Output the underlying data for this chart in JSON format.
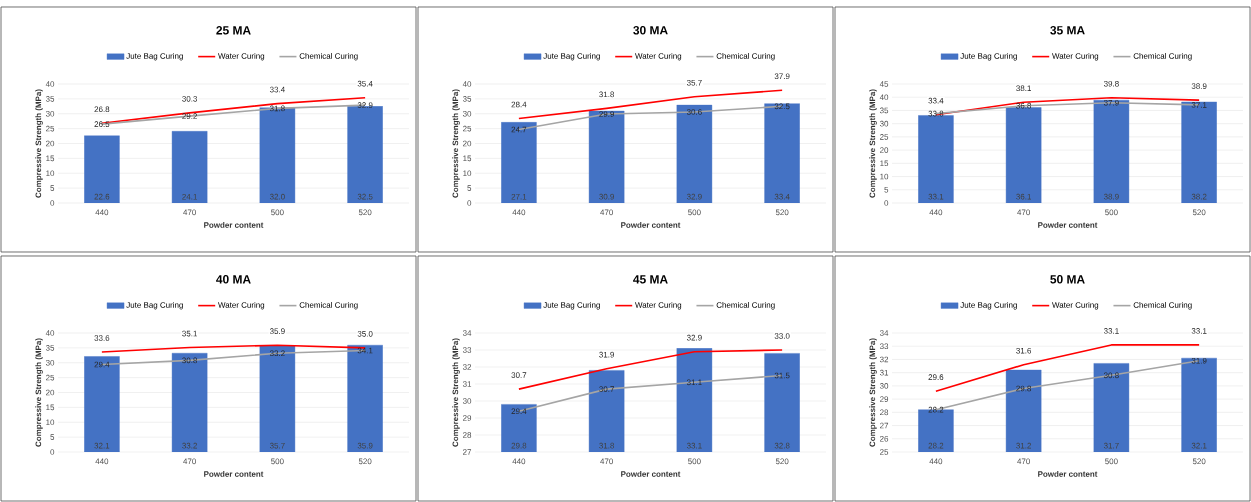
{
  "chart_data": [
    {
      "type": "bar",
      "title": "25 MA",
      "xlabel": "Powder content",
      "ylabel": "Compressive Strength (MPa)",
      "categories": [
        "440",
        "470",
        "500",
        "520"
      ],
      "ylim": [
        0,
        40
      ],
      "yticks": [
        0,
        5,
        10,
        15,
        20,
        25,
        30,
        35,
        40
      ],
      "grid": "y",
      "legend": "top",
      "series": [
        {
          "name": "Jute Bag Curing",
          "color": "#4472c4",
          "values": [
            22.6,
            24.1,
            32.0,
            32.5
          ],
          "value_labels": [
            "22.6",
            "24.1",
            "32.0",
            "32.5"
          ]
        },
        {
          "name": "Water Curing",
          "type": "line",
          "color": "#ff0000",
          "values": [
            26.8,
            30.3,
            33.4,
            35.4
          ],
          "value_labels": [
            "26.8",
            "30.3",
            "33.4",
            "35.4"
          ]
        },
        {
          "name": "Chemical Curing",
          "type": "line",
          "color": "#a5a5a5",
          "values": [
            26.5,
            29.2,
            31.8,
            32.9
          ],
          "value_labels": [
            "26.5",
            "29.2",
            "31.8",
            "32.9"
          ]
        }
      ]
    },
    {
      "type": "bar",
      "title": "30 MA",
      "xlabel": "Powder content",
      "ylabel": "Compressive Strength (MPa)",
      "categories": [
        "440",
        "470",
        "500",
        "520"
      ],
      "ylim": [
        0,
        40
      ],
      "yticks": [
        0,
        5,
        10,
        15,
        20,
        25,
        30,
        35,
        40
      ],
      "grid": "y",
      "legend": "top",
      "series": [
        {
          "name": "Jute Bag Curing",
          "color": "#4472c4",
          "values": [
            27.1,
            30.9,
            32.9,
            33.4
          ],
          "value_labels": [
            "27.1",
            "30.9",
            "32.9",
            "33.4"
          ]
        },
        {
          "name": "Water Curing",
          "type": "line",
          "color": "#ff0000",
          "values": [
            28.4,
            31.8,
            35.7,
            37.9
          ],
          "value_labels": [
            "28.4",
            "31.8",
            "35.7",
            "37.9"
          ]
        },
        {
          "name": "Chemical Curing",
          "type": "line",
          "color": "#a5a5a5",
          "values": [
            24.7,
            29.9,
            30.6,
            32.5
          ],
          "value_labels": [
            "24.7",
            "29.9",
            "30.6",
            "32.5"
          ]
        }
      ]
    },
    {
      "type": "bar",
      "title": "35 MA",
      "xlabel": "Powder content",
      "ylabel": "Compressive Strength (MPa)",
      "categories": [
        "440",
        "470",
        "500",
        "520"
      ],
      "ylim": [
        0,
        45
      ],
      "yticks": [
        0,
        5,
        10,
        15,
        20,
        25,
        30,
        35,
        40,
        45
      ],
      "grid": "y",
      "legend": "top",
      "series": [
        {
          "name": "Jute Bag Curing",
          "color": "#4472c4",
          "values": [
            33.1,
            36.1,
            38.9,
            38.2
          ],
          "value_labels": [
            "33.1",
            "36.1",
            "38.9",
            "38.2"
          ]
        },
        {
          "name": "Water Curing",
          "type": "line",
          "color": "#ff0000",
          "values": [
            33.4,
            38.1,
            39.8,
            38.9
          ],
          "value_labels": [
            "33.4",
            "38.1",
            "39.8",
            "38.9"
          ]
        },
        {
          "name": "Chemical Curing",
          "type": "line",
          "color": "#a5a5a5",
          "values": [
            33.8,
            36.8,
            37.9,
            37.1
          ],
          "value_labels": [
            "33.8",
            "36.8",
            "37.9",
            "37.1"
          ]
        }
      ]
    },
    {
      "type": "bar",
      "title": "40 MA",
      "xlabel": "Powder content",
      "ylabel": "Compressive Strength (MPa)",
      "categories": [
        "440",
        "470",
        "500",
        "520"
      ],
      "ylim": [
        0,
        40
      ],
      "yticks": [
        0,
        5,
        10,
        15,
        20,
        25,
        30,
        35,
        40
      ],
      "grid": "y",
      "legend": "top",
      "series": [
        {
          "name": "Jute Bag Curing",
          "color": "#4472c4",
          "values": [
            32.1,
            33.2,
            35.7,
            35.9
          ],
          "value_labels": [
            "32.1",
            "33.2",
            "35.7",
            "35.9"
          ]
        },
        {
          "name": "Water Curing",
          "type": "line",
          "color": "#ff0000",
          "values": [
            33.6,
            35.1,
            35.9,
            35.0
          ],
          "value_labels": [
            "33.6",
            "35.1",
            "35.9",
            "35.0"
          ]
        },
        {
          "name": "Chemical Curing",
          "type": "line",
          "color": "#a5a5a5",
          "values": [
            29.4,
            30.8,
            33.2,
            34.1
          ],
          "value_labels": [
            "29.4",
            "30.8",
            "33.2",
            "34.1"
          ]
        }
      ]
    },
    {
      "type": "bar",
      "title": "45 MA",
      "xlabel": "Powder content",
      "ylabel": "Compressive Strength (MPa)",
      "categories": [
        "440",
        "470",
        "500",
        "520"
      ],
      "ylim": [
        27,
        34
      ],
      "yticks": [
        27,
        28,
        29,
        30,
        31,
        32,
        33,
        34
      ],
      "grid": "y",
      "legend": "top",
      "series": [
        {
          "name": "Jute Bag Curing",
          "color": "#4472c4",
          "values": [
            29.8,
            31.8,
            33.1,
            32.8
          ],
          "value_labels": [
            "29.8",
            "31.8",
            "33.1",
            "32.8"
          ]
        },
        {
          "name": "Water Curing",
          "type": "line",
          "color": "#ff0000",
          "values": [
            30.7,
            31.9,
            32.9,
            33.0
          ],
          "value_labels": [
            "30.7",
            "31.9",
            "32.9",
            "33.0"
          ]
        },
        {
          "name": "Chemical Curing",
          "type": "line",
          "color": "#a5a5a5",
          "values": [
            29.4,
            30.7,
            31.1,
            31.5
          ],
          "value_labels": [
            "29.4",
            "30.7",
            "31.1",
            "31.5"
          ]
        }
      ]
    },
    {
      "type": "bar",
      "title": "50 MA",
      "xlabel": "Powder content",
      "ylabel": "Compressive Strength (MPa)",
      "categories": [
        "440",
        "470",
        "500",
        "520"
      ],
      "ylim": [
        25,
        34
      ],
      "yticks": [
        25,
        26,
        27,
        28,
        29,
        30,
        31,
        32,
        33,
        34
      ],
      "grid": "y",
      "legend": "top",
      "series": [
        {
          "name": "Jute Bag Curing",
          "color": "#4472c4",
          "values": [
            28.2,
            31.2,
            31.7,
            32.1
          ],
          "value_labels": [
            "28.2",
            "31.2",
            "31.7",
            "32.1"
          ]
        },
        {
          "name": "Water Curing",
          "type": "line",
          "color": "#ff0000",
          "values": [
            29.6,
            31.6,
            33.1,
            33.1
          ],
          "value_labels": [
            "29.6",
            "31.6",
            "33.1",
            "33.1"
          ]
        },
        {
          "name": "Chemical Curing",
          "type": "line",
          "color": "#a5a5a5",
          "values": [
            28.2,
            29.8,
            30.8,
            31.9
          ],
          "value_labels": [
            "28.2",
            "29.8",
            "30.8",
            "31.9"
          ]
        }
      ]
    }
  ]
}
